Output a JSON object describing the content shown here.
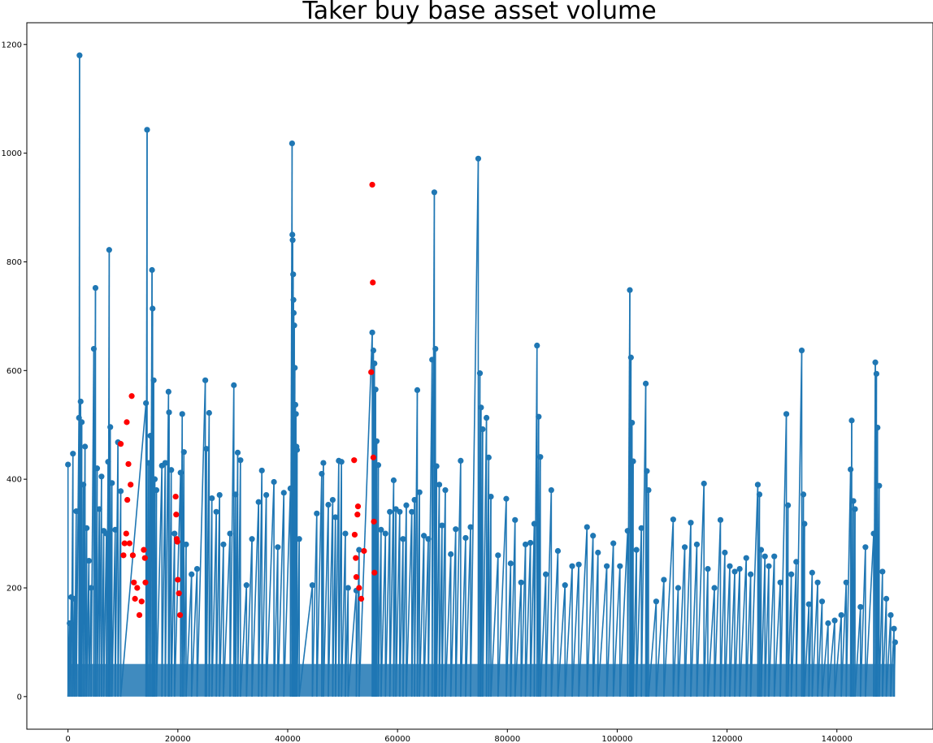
{
  "chart_data": {
    "type": "line",
    "title": "Taker buy base asset volume",
    "xlabel": "",
    "ylabel": "",
    "xlim": [
      -7500,
      157500
    ],
    "ylim": [
      -60,
      1240
    ],
    "x_ticks": [
      0,
      20000,
      40000,
      60000,
      80000,
      100000,
      120000,
      140000
    ],
    "x_tick_labels": [
      "0",
      "20000",
      "40000",
      "60000",
      "80000",
      "100000",
      "120000",
      "140000"
    ],
    "y_ticks": [
      0,
      200,
      400,
      600,
      800,
      1000,
      1200
    ],
    "y_tick_labels": [
      "0",
      "200",
      "400",
      "600",
      "800",
      "1000",
      "1200"
    ],
    "grid": false,
    "series": [
      {
        "color": "#1f77b4",
        "marker": "circle",
        "line": true,
        "points": [
          [
            0,
            427
          ],
          [
            300,
            135
          ],
          [
            600,
            183
          ],
          [
            900,
            447
          ],
          [
            1200,
            180
          ],
          [
            1500,
            341
          ],
          [
            2000,
            513
          ],
          [
            2100,
            1180
          ],
          [
            2300,
            543
          ],
          [
            2500,
            505
          ],
          [
            2800,
            390
          ],
          [
            3100,
            460
          ],
          [
            3400,
            310
          ],
          [
            3800,
            250
          ],
          [
            4200,
            200
          ],
          [
            4700,
            640
          ],
          [
            5000,
            752
          ],
          [
            5300,
            420
          ],
          [
            5700,
            345
          ],
          [
            6100,
            405
          ],
          [
            6500,
            305
          ],
          [
            7000,
            300
          ],
          [
            7300,
            432
          ],
          [
            7500,
            822
          ],
          [
            7700,
            496
          ],
          [
            8000,
            393
          ],
          [
            8600,
            307
          ],
          [
            9100,
            468
          ],
          [
            9600,
            378
          ],
          [
            14200,
            540
          ],
          [
            14400,
            1043
          ],
          [
            14700,
            430
          ],
          [
            15000,
            480
          ],
          [
            15300,
            785
          ],
          [
            15400,
            714
          ],
          [
            15600,
            582
          ],
          [
            15800,
            400
          ],
          [
            16100,
            380
          ],
          [
            17100,
            425
          ],
          [
            17700,
            430
          ],
          [
            18300,
            561
          ],
          [
            18400,
            523
          ],
          [
            18800,
            417
          ],
          [
            19400,
            300
          ],
          [
            20500,
            412
          ],
          [
            20800,
            520
          ],
          [
            21100,
            450
          ],
          [
            21500,
            280
          ],
          [
            22500,
            225
          ],
          [
            23500,
            235
          ],
          [
            25000,
            582
          ],
          [
            25200,
            456
          ],
          [
            25700,
            522
          ],
          [
            26200,
            365
          ],
          [
            27000,
            340
          ],
          [
            27600,
            371
          ],
          [
            28300,
            280
          ],
          [
            29500,
            300
          ],
          [
            30200,
            573
          ],
          [
            30500,
            372
          ],
          [
            30900,
            449
          ],
          [
            31400,
            435
          ],
          [
            32500,
            205
          ],
          [
            33500,
            290
          ],
          [
            34700,
            358
          ],
          [
            35300,
            416
          ],
          [
            36100,
            371
          ],
          [
            37500,
            395
          ],
          [
            38200,
            275
          ],
          [
            39300,
            375
          ],
          [
            40500,
            383
          ],
          [
            40800,
            1018
          ],
          [
            40850,
            850
          ],
          [
            40900,
            840
          ],
          [
            41000,
            777
          ],
          [
            41050,
            730
          ],
          [
            41100,
            706
          ],
          [
            41200,
            683
          ],
          [
            41300,
            605
          ],
          [
            41400,
            537
          ],
          [
            41500,
            520
          ],
          [
            41600,
            460
          ],
          [
            41700,
            454
          ],
          [
            42100,
            290
          ],
          [
            44500,
            205
          ],
          [
            45300,
            337
          ],
          [
            46200,
            410
          ],
          [
            46500,
            430
          ],
          [
            47400,
            353
          ],
          [
            48200,
            362
          ],
          [
            48700,
            330
          ],
          [
            49300,
            434
          ],
          [
            49800,
            432
          ],
          [
            50500,
            300
          ],
          [
            51000,
            200
          ],
          [
            52500,
            195
          ],
          [
            53000,
            270
          ],
          [
            55400,
            670
          ],
          [
            55600,
            637
          ],
          [
            55800,
            613
          ],
          [
            56000,
            565
          ],
          [
            56200,
            470
          ],
          [
            56500,
            426
          ],
          [
            57000,
            307
          ],
          [
            57800,
            300
          ],
          [
            58600,
            340
          ],
          [
            59300,
            398
          ],
          [
            59700,
            345
          ],
          [
            60400,
            340
          ],
          [
            61000,
            290
          ],
          [
            61600,
            352
          ],
          [
            62600,
            340
          ],
          [
            63100,
            362
          ],
          [
            63600,
            564
          ],
          [
            64000,
            376
          ],
          [
            64800,
            296
          ],
          [
            65600,
            290
          ],
          [
            66300,
            620
          ],
          [
            66700,
            928
          ],
          [
            66900,
            640
          ],
          [
            67100,
            424
          ],
          [
            67600,
            390
          ],
          [
            68100,
            315
          ],
          [
            68700,
            380
          ],
          [
            69700,
            262
          ],
          [
            70600,
            308
          ],
          [
            71500,
            434
          ],
          [
            72400,
            292
          ],
          [
            73300,
            312
          ],
          [
            74700,
            990
          ],
          [
            75000,
            595
          ],
          [
            75200,
            532
          ],
          [
            75500,
            492
          ],
          [
            76200,
            513
          ],
          [
            76600,
            440
          ],
          [
            77000,
            368
          ],
          [
            78300,
            260
          ],
          [
            79800,
            364
          ],
          [
            80600,
            245
          ],
          [
            81400,
            325
          ],
          [
            82500,
            210
          ],
          [
            83300,
            280
          ],
          [
            84200,
            283
          ],
          [
            84900,
            318
          ],
          [
            85400,
            646
          ],
          [
            85700,
            515
          ],
          [
            86000,
            441
          ],
          [
            87000,
            225
          ],
          [
            88000,
            380
          ],
          [
            89200,
            268
          ],
          [
            90500,
            205
          ],
          [
            91800,
            240
          ],
          [
            93000,
            243
          ],
          [
            94500,
            312
          ],
          [
            95600,
            296
          ],
          [
            96500,
            265
          ],
          [
            98100,
            240
          ],
          [
            99300,
            282
          ],
          [
            100500,
            240
          ],
          [
            101900,
            305
          ],
          [
            102300,
            748
          ],
          [
            102500,
            624
          ],
          [
            102700,
            504
          ],
          [
            102900,
            433
          ],
          [
            103500,
            270
          ],
          [
            104400,
            310
          ],
          [
            105200,
            576
          ],
          [
            105400,
            415
          ],
          [
            105700,
            380
          ],
          [
            107100,
            175
          ],
          [
            108500,
            215
          ],
          [
            110200,
            326
          ],
          [
            111100,
            200
          ],
          [
            112300,
            275
          ],
          [
            113400,
            320
          ],
          [
            114500,
            280
          ],
          [
            115800,
            392
          ],
          [
            116500,
            235
          ],
          [
            117700,
            200
          ],
          [
            118800,
            325
          ],
          [
            119600,
            265
          ],
          [
            120500,
            240
          ],
          [
            121400,
            230
          ],
          [
            122300,
            235
          ],
          [
            123500,
            255
          ],
          [
            124300,
            225
          ],
          [
            125600,
            390
          ],
          [
            125900,
            372
          ],
          [
            126200,
            270
          ],
          [
            126900,
            258
          ],
          [
            127600,
            240
          ],
          [
            128600,
            258
          ],
          [
            129700,
            210
          ],
          [
            130800,
            520
          ],
          [
            131100,
            352
          ],
          [
            131700,
            225
          ],
          [
            132600,
            248
          ],
          [
            133600,
            637
          ],
          [
            133900,
            372
          ],
          [
            134100,
            318
          ],
          [
            134900,
            170
          ],
          [
            135500,
            228
          ],
          [
            136500,
            210
          ],
          [
            137300,
            175
          ],
          [
            138400,
            135
          ],
          [
            139600,
            140
          ],
          [
            140800,
            150
          ],
          [
            141700,
            210
          ],
          [
            142500,
            418
          ],
          [
            142700,
            508
          ],
          [
            143000,
            360
          ],
          [
            143300,
            345
          ],
          [
            144300,
            165
          ],
          [
            145200,
            275
          ],
          [
            146700,
            300
          ],
          [
            147000,
            615
          ],
          [
            147200,
            594
          ],
          [
            147400,
            495
          ],
          [
            147700,
            388
          ],
          [
            148300,
            230
          ],
          [
            149000,
            180
          ],
          [
            149800,
            150
          ],
          [
            150400,
            125
          ],
          [
            150600,
            100
          ]
        ]
      },
      {
        "color": "#ff0000",
        "marker": "circle",
        "line": false,
        "points": [
          [
            9600,
            465
          ],
          [
            10100,
            260
          ],
          [
            10300,
            282
          ],
          [
            10600,
            300
          ],
          [
            10700,
            505
          ],
          [
            10800,
            362
          ],
          [
            11000,
            428
          ],
          [
            11200,
            282
          ],
          [
            11400,
            390
          ],
          [
            11600,
            553
          ],
          [
            11800,
            260
          ],
          [
            12000,
            210
          ],
          [
            12200,
            180
          ],
          [
            12600,
            200
          ],
          [
            13000,
            150
          ],
          [
            13400,
            175
          ],
          [
            13800,
            270
          ],
          [
            14000,
            255
          ],
          [
            14100,
            210
          ],
          [
            19600,
            368
          ],
          [
            19700,
            335
          ],
          [
            19800,
            290
          ],
          [
            19900,
            285
          ],
          [
            20000,
            215
          ],
          [
            20200,
            190
          ],
          [
            20400,
            150
          ],
          [
            52100,
            435
          ],
          [
            52200,
            298
          ],
          [
            52400,
            255
          ],
          [
            52500,
            220
          ],
          [
            52700,
            335
          ],
          [
            52800,
            350
          ],
          [
            53000,
            200
          ],
          [
            53400,
            180
          ],
          [
            53900,
            268
          ],
          [
            55200,
            597
          ],
          [
            55400,
            942
          ],
          [
            55500,
            762
          ],
          [
            55600,
            440
          ],
          [
            55700,
            322
          ],
          [
            55800,
            228
          ]
        ]
      }
    ]
  }
}
